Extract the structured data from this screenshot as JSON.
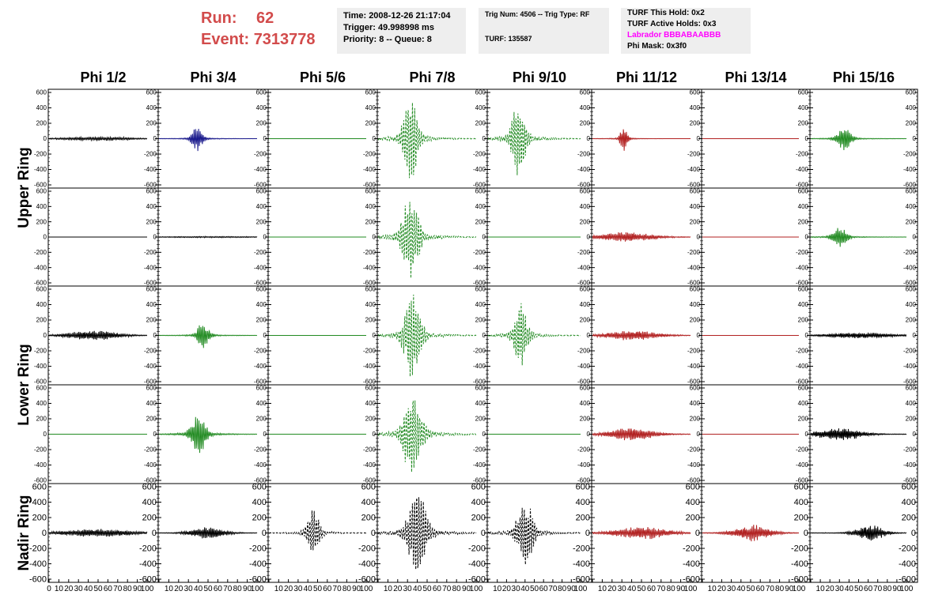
{
  "header": {
    "run_key": "Run:",
    "run_value": "62",
    "event_key": "Event:",
    "event_value": "7313778",
    "time_box": {
      "time": "Time: 2008-12-26 21:17:04",
      "trigger": "Trigger: 49.998998 ms",
      "priority": "Priority: 8 -- Queue: 8"
    },
    "trig_box": {
      "trig": "Trig Num: 4506 -- Trig Type: RF",
      "turf": "TURF: 135587"
    },
    "turf_box": {
      "this_hold": "TURF This Hold: 0x2",
      "active_holds": "TURF Active Holds: 0x3",
      "labrador": "Labrador BBBABAABBB",
      "phi_mask": "Phi Mask: 0x3f0"
    }
  },
  "columns": [
    "Phi 1/2",
    "Phi 3/4",
    "Phi 5/6",
    "Phi 7/8",
    "Phi 9/10",
    "Phi 11/12",
    "Phi 13/14",
    "Phi 15/16"
  ],
  "ring_labels": {
    "upper": "Upper Ring",
    "lower": "Lower Ring",
    "nadir": "Nadir Ring"
  },
  "colors": {
    "title_red": "#d24b4b",
    "labrador_magenta": "#ff00ff",
    "info_bg": "#eeeeee",
    "black": "#000000",
    "blue": "#1a1a8c",
    "green": "#228b22",
    "red": "#b22222"
  },
  "chart_data": {
    "type": "line",
    "grid": false,
    "xlim": [
      0,
      100
    ],
    "ylim": [
      -600,
      600
    ],
    "x_ticks": [
      "0",
      "10",
      "20",
      "30",
      "40",
      "50",
      "60",
      "70",
      "80",
      "90",
      "100"
    ],
    "y_ticks": [
      "600",
      "400",
      "200",
      "0",
      "-200",
      "-400",
      "-600"
    ],
    "panels": [
      [
        {
          "color": "black",
          "amp": 25,
          "center": 50,
          "width": 40,
          "dashed": false,
          "freq": 1.2,
          "seed": 1
        },
        {
          "color": "blue",
          "amp": 150,
          "center": 39,
          "width": 6,
          "dashed": false,
          "freq": 1.3,
          "seed": 2
        },
        {
          "color": "green",
          "amp": 0,
          "center": 50,
          "width": 10,
          "dashed": false,
          "freq": 1.0,
          "seed": 3
        },
        {
          "color": "green",
          "amp": 540,
          "center": 33,
          "width": 8,
          "dashed": true,
          "freq": 0.9,
          "seed": 4
        },
        {
          "color": "green",
          "amp": 520,
          "center": 33,
          "width": 8,
          "dashed": true,
          "freq": 0.9,
          "seed": 5
        },
        {
          "color": "red",
          "amp": 160,
          "center": 32,
          "width": 4,
          "dashed": false,
          "freq": 1.3,
          "seed": 6
        },
        {
          "color": "red",
          "amp": 0,
          "center": 50,
          "width": 10,
          "dashed": false,
          "freq": 1.0,
          "seed": 7
        },
        {
          "color": "green",
          "amp": 140,
          "center": 35,
          "width": 8,
          "dashed": false,
          "freq": 1.2,
          "seed": 8
        }
      ],
      [
        {
          "color": "black",
          "amp": 0,
          "center": 50,
          "width": 10,
          "dashed": false,
          "freq": 1.0,
          "seed": 9
        },
        {
          "color": "black",
          "amp": 8,
          "center": 50,
          "width": 60,
          "dashed": false,
          "freq": 1.4,
          "seed": 10
        },
        {
          "color": "green",
          "amp": 0,
          "center": 50,
          "width": 10,
          "dashed": false,
          "freq": 1.0,
          "seed": 11
        },
        {
          "color": "green",
          "amp": 580,
          "center": 33,
          "width": 9,
          "dashed": true,
          "freq": 0.9,
          "seed": 12
        },
        {
          "color": "green",
          "amp": 0,
          "center": 50,
          "width": 10,
          "dashed": false,
          "freq": 1.0,
          "seed": 13
        },
        {
          "color": "red",
          "amp": 60,
          "center": 35,
          "width": 30,
          "dashed": false,
          "freq": 1.3,
          "seed": 14
        },
        {
          "color": "red",
          "amp": 0,
          "center": 50,
          "width": 10,
          "dashed": false,
          "freq": 1.0,
          "seed": 15
        },
        {
          "color": "green",
          "amp": 140,
          "center": 30,
          "width": 8,
          "dashed": false,
          "freq": 1.2,
          "seed": 16
        }
      ],
      [
        {
          "color": "black",
          "amp": 60,
          "center": 45,
          "width": 30,
          "dashed": false,
          "freq": 1.3,
          "seed": 17
        },
        {
          "color": "green",
          "amp": 160,
          "center": 45,
          "width": 7,
          "dashed": false,
          "freq": 1.2,
          "seed": 18
        },
        {
          "color": "green",
          "amp": 0,
          "center": 50,
          "width": 10,
          "dashed": false,
          "freq": 1.0,
          "seed": 19
        },
        {
          "color": "green",
          "amp": 540,
          "center": 35,
          "width": 9,
          "dashed": true,
          "freq": 0.9,
          "seed": 20
        },
        {
          "color": "green",
          "amp": 420,
          "center": 35,
          "width": 8,
          "dashed": true,
          "freq": 0.9,
          "seed": 21
        },
        {
          "color": "red",
          "amp": 60,
          "center": 40,
          "width": 30,
          "dashed": false,
          "freq": 1.3,
          "seed": 22
        },
        {
          "color": "red",
          "amp": 0,
          "center": 50,
          "width": 10,
          "dashed": false,
          "freq": 1.0,
          "seed": 23
        },
        {
          "color": "black",
          "amp": 35,
          "center": 50,
          "width": 40,
          "dashed": false,
          "freq": 1.4,
          "seed": 24
        }
      ],
      [
        {
          "color": "green",
          "amp": 0,
          "center": 50,
          "width": 10,
          "dashed": false,
          "freq": 1.0,
          "seed": 25
        },
        {
          "color": "green",
          "amp": 270,
          "center": 40,
          "width": 8,
          "dashed": false,
          "freq": 1.2,
          "seed": 26
        },
        {
          "color": "green",
          "amp": 0,
          "center": 50,
          "width": 10,
          "dashed": false,
          "freq": 1.0,
          "seed": 27
        },
        {
          "color": "green",
          "amp": 550,
          "center": 35,
          "width": 10,
          "dashed": true,
          "freq": 0.9,
          "seed": 28
        },
        {
          "color": "green",
          "amp": 0,
          "center": 50,
          "width": 10,
          "dashed": false,
          "freq": 1.0,
          "seed": 29
        },
        {
          "color": "red",
          "amp": 80,
          "center": 40,
          "width": 25,
          "dashed": false,
          "freq": 1.3,
          "seed": 30
        },
        {
          "color": "red",
          "amp": 0,
          "center": 50,
          "width": 10,
          "dashed": false,
          "freq": 1.0,
          "seed": 31
        },
        {
          "color": "black",
          "amp": 80,
          "center": 30,
          "width": 25,
          "dashed": false,
          "freq": 1.4,
          "seed": 32
        }
      ],
      [
        {
          "color": "black",
          "amp": 50,
          "center": 50,
          "width": 40,
          "dashed": false,
          "freq": 1.3,
          "seed": 33
        },
        {
          "color": "black",
          "amp": 70,
          "center": 50,
          "width": 20,
          "dashed": false,
          "freq": 1.3,
          "seed": 34
        },
        {
          "color": "black",
          "amp": 300,
          "center": 46,
          "width": 7,
          "dashed": true,
          "freq": 0.9,
          "seed": 35
        },
        {
          "color": "black",
          "amp": 540,
          "center": 40,
          "width": 10,
          "dashed": true,
          "freq": 0.9,
          "seed": 36
        },
        {
          "color": "black",
          "amp": 460,
          "center": 40,
          "width": 9,
          "dashed": true,
          "freq": 0.9,
          "seed": 37
        },
        {
          "color": "red",
          "amp": 80,
          "center": 50,
          "width": 30,
          "dashed": false,
          "freq": 1.3,
          "seed": 38
        },
        {
          "color": "red",
          "amp": 100,
          "center": 52,
          "width": 20,
          "dashed": false,
          "freq": 1.3,
          "seed": 39
        },
        {
          "color": "black",
          "amp": 100,
          "center": 62,
          "width": 15,
          "dashed": false,
          "freq": 1.3,
          "seed": 40
        }
      ]
    ]
  }
}
